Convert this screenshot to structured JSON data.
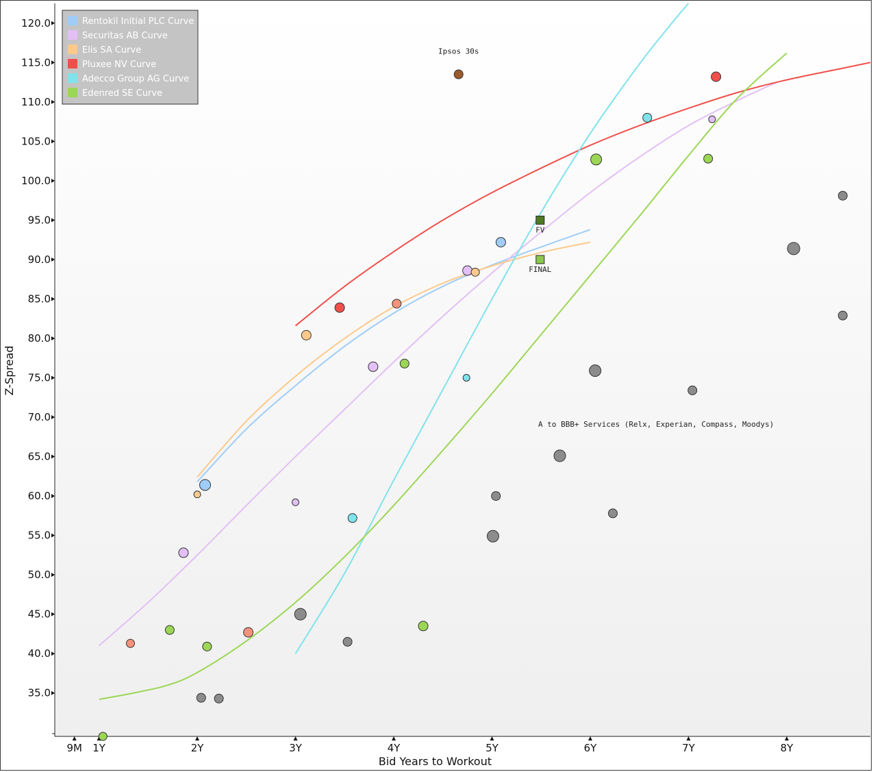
{
  "chart_data": {
    "type": "scatter",
    "xlabel": "Bid Years to Workout",
    "ylabel": "Z-Spread",
    "xlim": [
      0.55,
      8.85
    ],
    "ylim": [
      29.5,
      122.5
    ],
    "y_ticks": [
      "35.0",
      "40.0",
      "45.0",
      "50.0",
      "55.0",
      "60.0",
      "65.0",
      "70.0",
      "75.0",
      "80.0",
      "85.0",
      "90.0",
      "95.0",
      "100.0",
      "105.0",
      "110.0",
      "115.0",
      "120.0"
    ],
    "y_tick_values": [
      35,
      40,
      45,
      50,
      55,
      60,
      65,
      70,
      75,
      80,
      85,
      90,
      95,
      100,
      105,
      110,
      115,
      120
    ],
    "x_ticks": [
      {
        "label": "9M",
        "value": 0.75
      },
      {
        "label": "1Y",
        "value": 1
      },
      {
        "label": "2Y",
        "value": 2
      },
      {
        "label": "3Y",
        "value": 3
      },
      {
        "label": "4Y",
        "value": 4
      },
      {
        "label": "5Y",
        "value": 5
      },
      {
        "label": "6Y",
        "value": 6
      },
      {
        "label": "7Y",
        "value": 7
      },
      {
        "label": "8Y",
        "value": 8
      }
    ],
    "legend": {
      "position": "top-left",
      "entries": [
        {
          "label": "Rentokil Initial PLC Curve",
          "color": "#9fcdf7"
        },
        {
          "label": "Securitas AB Curve",
          "color": "#e2bff5"
        },
        {
          "label": "Elis SA Curve",
          "color": "#fcc98b"
        },
        {
          "label": "Pluxee NV Curve",
          "color": "#f0504b"
        },
        {
          "label": "Adecco Group AG Curve",
          "color": "#7fe3eb"
        },
        {
          "label": "Edenred SE Curve",
          "color": "#9cd655"
        }
      ]
    },
    "curves": [
      {
        "name": "Rentokil Initial PLC Curve",
        "color": "#9fcdf7",
        "points": [
          [
            2.0,
            61.8
          ],
          [
            2.5,
            68.5
          ],
          [
            3.0,
            74.0
          ],
          [
            3.5,
            79.0
          ],
          [
            4.0,
            83.2
          ],
          [
            4.5,
            86.6
          ],
          [
            5.0,
            89.3
          ],
          [
            5.5,
            91.6
          ],
          [
            6.0,
            93.8
          ]
        ]
      },
      {
        "name": "Securitas AB Curve",
        "color": "#e2bff5",
        "points": [
          [
            1.0,
            41.0
          ],
          [
            1.5,
            46.5
          ],
          [
            2.0,
            52.5
          ],
          [
            2.5,
            58.8
          ],
          [
            3.0,
            65.0
          ],
          [
            3.5,
            71.0
          ],
          [
            4.0,
            77.0
          ],
          [
            4.5,
            82.8
          ],
          [
            5.0,
            88.3
          ],
          [
            5.5,
            93.5
          ],
          [
            6.0,
            98.5
          ],
          [
            6.5,
            103.0
          ],
          [
            7.0,
            107.0
          ],
          [
            7.5,
            110.2
          ],
          [
            7.9,
            112.5
          ]
        ]
      },
      {
        "name": "Elis SA Curve",
        "color": "#fcc98b",
        "points": [
          [
            2.0,
            62.4
          ],
          [
            2.5,
            69.5
          ],
          [
            3.0,
            75.2
          ],
          [
            3.5,
            80.0
          ],
          [
            4.0,
            84.0
          ],
          [
            4.5,
            87.0
          ],
          [
            5.0,
            89.2
          ],
          [
            5.5,
            90.9
          ],
          [
            6.0,
            92.2
          ]
        ]
      },
      {
        "name": "Pluxee NV Curve",
        "color": "#f0504b",
        "points": [
          [
            3.0,
            81.6
          ],
          [
            3.5,
            86.6
          ],
          [
            4.0,
            91.0
          ],
          [
            4.5,
            95.0
          ],
          [
            5.0,
            98.5
          ],
          [
            5.5,
            101.6
          ],
          [
            6.0,
            104.5
          ],
          [
            6.5,
            107.0
          ],
          [
            7.0,
            109.2
          ],
          [
            7.5,
            111.2
          ],
          [
            8.0,
            112.8
          ],
          [
            8.5,
            114.1
          ],
          [
            8.85,
            115.0
          ]
        ]
      },
      {
        "name": "Adecco Group AG Curve",
        "color": "#7fe3eb",
        "points": [
          [
            3.0,
            40.0
          ],
          [
            3.5,
            50.2
          ],
          [
            4.0,
            62.0
          ],
          [
            4.5,
            73.5
          ],
          [
            5.0,
            85.0
          ],
          [
            5.5,
            96.0
          ],
          [
            6.0,
            106.0
          ],
          [
            6.5,
            114.8
          ],
          [
            6.85,
            120.3
          ],
          [
            7.0,
            122.5
          ]
        ]
      },
      {
        "name": "Edenred SE Curve",
        "color": "#9cd655",
        "points": [
          [
            1.0,
            34.2
          ],
          [
            1.35,
            35.0
          ],
          [
            1.7,
            36.0
          ],
          [
            2.0,
            37.6
          ],
          [
            2.5,
            41.6
          ],
          [
            3.0,
            46.5
          ],
          [
            3.5,
            52.3
          ],
          [
            4.0,
            58.8
          ],
          [
            4.5,
            65.8
          ],
          [
            5.0,
            73.0
          ],
          [
            5.5,
            80.5
          ],
          [
            6.0,
            88.0
          ],
          [
            6.5,
            95.5
          ],
          [
            7.0,
            103.2
          ],
          [
            7.5,
            110.5
          ],
          [
            8.0,
            116.2
          ]
        ]
      }
    ],
    "points": [
      {
        "x": 1.32,
        "y": 41.3,
        "size": 6,
        "color": "#f4927c"
      },
      {
        "x": 2.52,
        "y": 42.7,
        "size": 7,
        "color": "#f4927c"
      },
      {
        "x": 4.03,
        "y": 84.4,
        "size": 6.5,
        "color": "#f4927c"
      },
      {
        "x": 2.08,
        "y": 61.4,
        "size": 8,
        "color": "#9fcdf7"
      },
      {
        "x": 5.09,
        "y": 92.2,
        "size": 7,
        "color": "#9fcdf7"
      },
      {
        "x": 1.86,
        "y": 52.8,
        "size": 7,
        "color": "#e2bff5"
      },
      {
        "x": 3.0,
        "y": 59.2,
        "size": 5,
        "color": "#e2bff5"
      },
      {
        "x": 3.79,
        "y": 76.4,
        "size": 7,
        "color": "#e2bff5"
      },
      {
        "x": 4.75,
        "y": 88.6,
        "size": 7,
        "color": "#e2bff5"
      },
      {
        "x": 7.24,
        "y": 107.8,
        "size": 5,
        "color": "#e2bff5"
      },
      {
        "x": 2.0,
        "y": 60.2,
        "size": 5,
        "color": "#fcc98b"
      },
      {
        "x": 3.11,
        "y": 80.4,
        "size": 7,
        "color": "#fcc98b"
      },
      {
        "x": 4.83,
        "y": 88.4,
        "size": 6,
        "color": "#fcc98b"
      },
      {
        "x": 3.45,
        "y": 83.9,
        "size": 7,
        "color": "#f0504b"
      },
      {
        "x": 7.28,
        "y": 113.2,
        "size": 7,
        "color": "#f0504b"
      },
      {
        "x": 3.58,
        "y": 57.2,
        "size": 6.5,
        "color": "#7fe3eb"
      },
      {
        "x": 4.74,
        "y": 75.0,
        "size": 5,
        "color": "#7fe3eb"
      },
      {
        "x": 6.58,
        "y": 108.0,
        "size": 6.5,
        "color": "#7fe3eb"
      },
      {
        "x": 1.04,
        "y": 29.5,
        "size": 6,
        "color": "#9cd655"
      },
      {
        "x": 1.72,
        "y": 43.0,
        "size": 6.5,
        "color": "#9cd655"
      },
      {
        "x": 2.1,
        "y": 40.9,
        "size": 6.5,
        "color": "#9cd655"
      },
      {
        "x": 4.11,
        "y": 76.8,
        "size": 6.5,
        "color": "#9cd655"
      },
      {
        "x": 4.3,
        "y": 43.5,
        "size": 7,
        "color": "#9cd655"
      },
      {
        "x": 6.06,
        "y": 102.7,
        "size": 8,
        "color": "#9cd655"
      },
      {
        "x": 7.2,
        "y": 102.8,
        "size": 6.5,
        "color": "#9cd655"
      },
      {
        "x": 2.04,
        "y": 34.4,
        "size": 6.5,
        "color": "#8c8c8c"
      },
      {
        "x": 2.22,
        "y": 34.3,
        "size": 6.5,
        "color": "#8c8c8c"
      },
      {
        "x": 3.05,
        "y": 45.0,
        "size": 8.5,
        "color": "#8c8c8c"
      },
      {
        "x": 3.53,
        "y": 41.5,
        "size": 6.5,
        "color": "#8c8c8c"
      },
      {
        "x": 5.01,
        "y": 54.9,
        "size": 8.5,
        "color": "#8c8c8c"
      },
      {
        "x": 5.04,
        "y": 60.0,
        "size": 6.5,
        "color": "#8c8c8c"
      },
      {
        "x": 5.69,
        "y": 65.1,
        "size": 8.5,
        "color": "#8c8c8c"
      },
      {
        "x": 6.05,
        "y": 75.9,
        "size": 8.5,
        "color": "#8c8c8c"
      },
      {
        "x": 6.23,
        "y": 57.8,
        "size": 6.5,
        "color": "#8c8c8c"
      },
      {
        "x": 7.04,
        "y": 73.4,
        "size": 6.5,
        "color": "#8c8c8c"
      },
      {
        "x": 8.07,
        "y": 91.4,
        "size": 9,
        "color": "#8c8c8c"
      },
      {
        "x": 8.57,
        "y": 98.1,
        "size": 6.5,
        "color": "#8c8c8c"
      },
      {
        "x": 8.57,
        "y": 82.9,
        "size": 6.5,
        "color": "#8c8c8c"
      },
      {
        "x": 4.66,
        "y": 113.5,
        "size": 6.5,
        "color": "#9b5b2e"
      }
    ],
    "square_markers": [
      {
        "label": "FV",
        "x": 5.49,
        "y": 95.0,
        "color": "#4f7a24"
      },
      {
        "label": "FINAL",
        "x": 5.49,
        "y": 90.0,
        "color": "#8bc84e"
      }
    ],
    "annotations": [
      {
        "text": "Ipsos 30s",
        "x": 4.66,
        "y": 116.1,
        "color": "#6b3f1d"
      },
      {
        "text": "A to BBB+ Services (Relx, Experian, Compass, Moodys)",
        "x": 5.47,
        "y": 68.8,
        "color": "#222222"
      }
    ]
  }
}
